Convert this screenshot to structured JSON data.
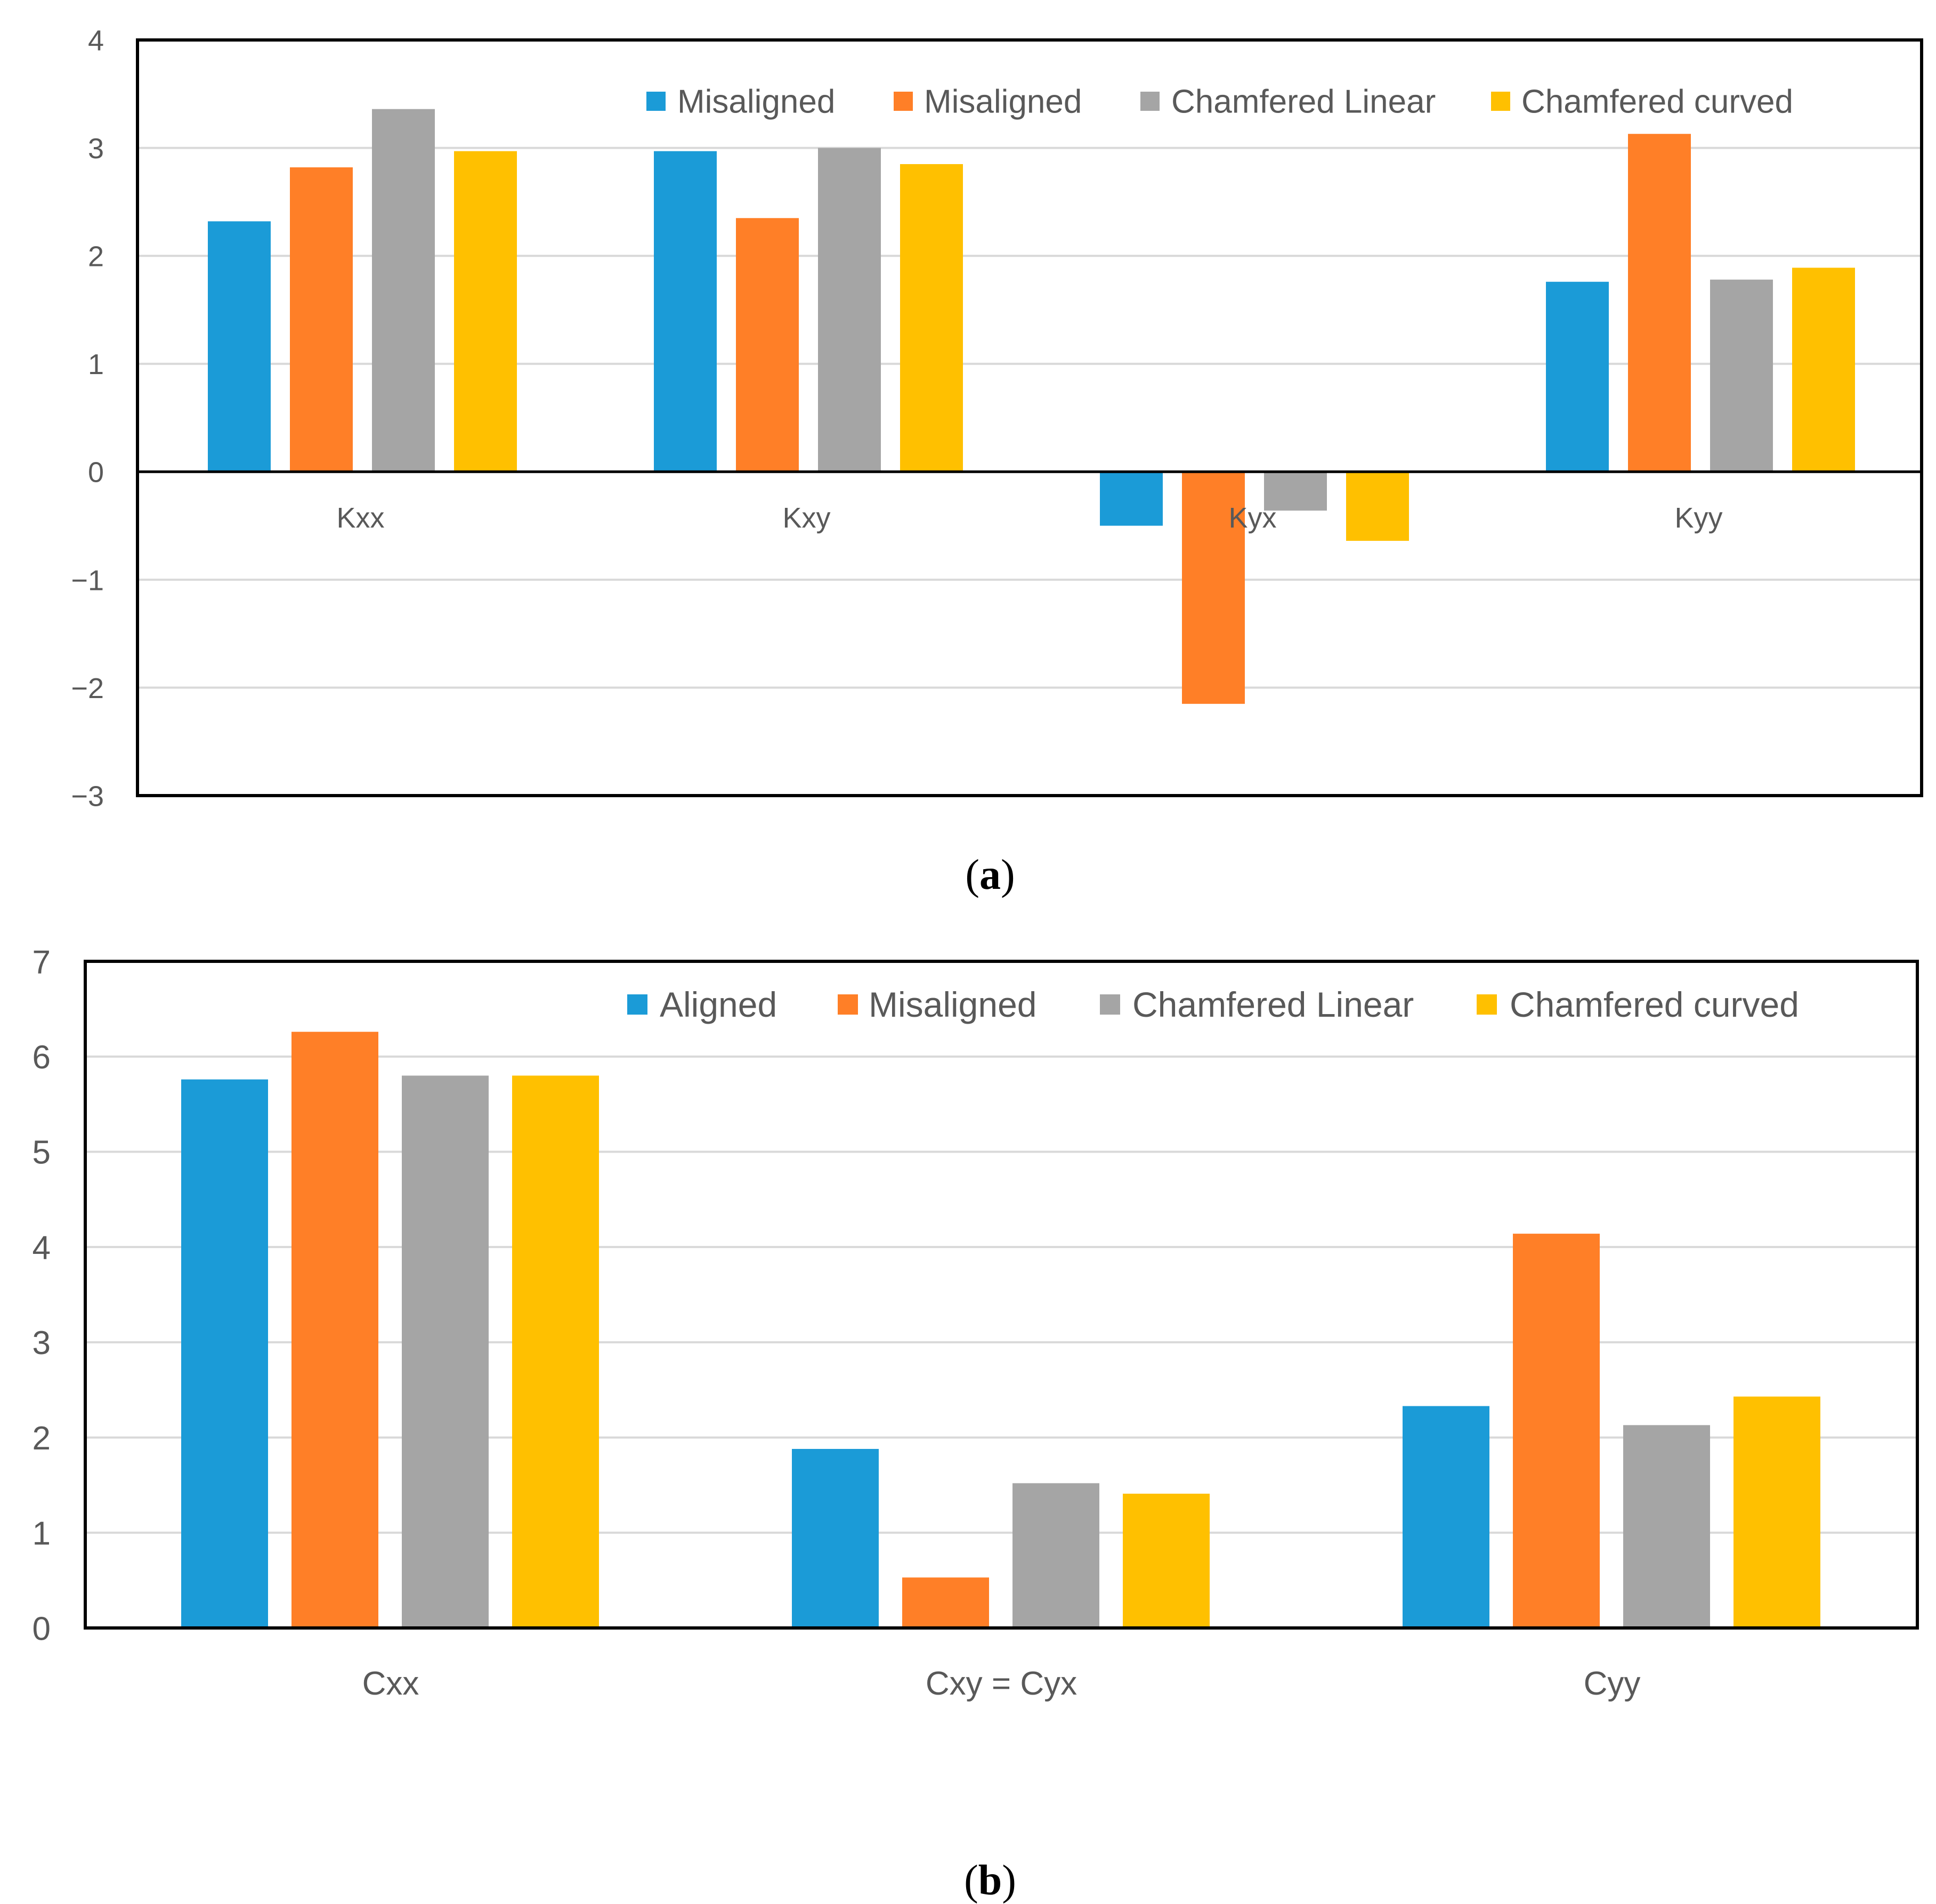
{
  "chart_data": [
    {
      "type": "bar",
      "panel": "a",
      "caption": "(a)",
      "caption_letter": "a",
      "categories": [
        "Kxx",
        "Kxy",
        "Kyx",
        "Kyy"
      ],
      "y_ticks": [
        "4",
        "3",
        "2",
        "1",
        "0",
        "−1",
        "−2",
        "−3"
      ],
      "ylim": [
        -3,
        4
      ],
      "grid": true,
      "legend_position": "top-right",
      "title": "",
      "xlabel": "",
      "ylabel": "",
      "series": [
        {
          "name": "Misaligned",
          "color": "#1B9BD7",
          "values": [
            2.32,
            2.97,
            -0.5,
            1.76
          ]
        },
        {
          "name": "Misaligned",
          "color": "#FF7F27",
          "values": [
            2.82,
            2.35,
            -2.15,
            3.13
          ]
        },
        {
          "name": "Chamfered Linear",
          "color": "#A5A5A5",
          "values": [
            3.36,
            3.0,
            -0.36,
            1.78
          ]
        },
        {
          "name": "Chamfered curved",
          "color": "#FFC000",
          "values": [
            2.97,
            2.85,
            -0.64,
            1.89
          ]
        }
      ]
    },
    {
      "type": "bar",
      "panel": "b",
      "caption": "(b)",
      "caption_letter": "b",
      "categories": [
        "Cxx",
        "Cxy = Cyx",
        "Cyy"
      ],
      "y_ticks": [
        "7",
        "6",
        "5",
        "4",
        "3",
        "2",
        "1",
        "0"
      ],
      "ylim": [
        0,
        7
      ],
      "grid": true,
      "legend_position": "top-right",
      "title": "",
      "xlabel": "",
      "ylabel": "",
      "series": [
        {
          "name": "Aligned",
          "color": "#1B9BD7",
          "values": [
            5.76,
            1.88,
            2.33
          ]
        },
        {
          "name": "Misaligned",
          "color": "#FF7F27",
          "values": [
            6.26,
            0.53,
            4.14
          ]
        },
        {
          "name": "Chamfered Linear",
          "color": "#A5A5A5",
          "values": [
            5.8,
            1.52,
            2.13
          ]
        },
        {
          "name": "Chamfered curved",
          "color": "#FFC000",
          "values": [
            5.8,
            1.41,
            2.43
          ]
        }
      ]
    }
  ]
}
